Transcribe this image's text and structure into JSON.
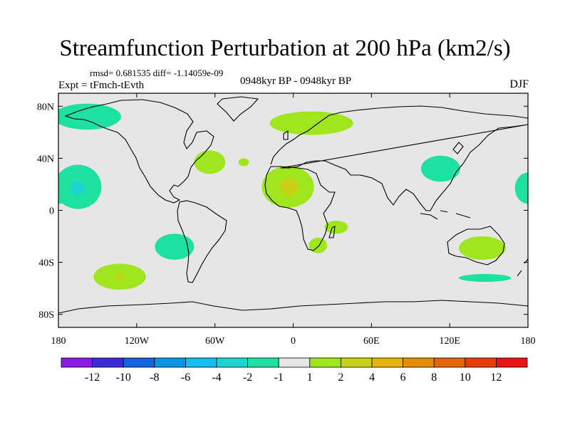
{
  "header": {
    "title": "Streamfunction Perturbation at 200 hPa (km2/s)",
    "rmsd_line": "rmsd= 0.681535 diff= -1.14059e-09",
    "experiment": "Expt = tFmch-tEvth",
    "period": "0948kyr BP - 0948kyr BP",
    "season": "DJF"
  },
  "chart_data": {
    "type": "heatmap",
    "title": "Streamfunction Perturbation at 200 hPa (km2/s)",
    "xlabel": "",
    "ylabel": "",
    "xlim": [
      -180,
      180
    ],
    "ylim": [
      -90,
      90
    ],
    "x_ticks": [
      {
        "lon": -180,
        "label": "180"
      },
      {
        "lon": -120,
        "label": "120W"
      },
      {
        "lon": -60,
        "label": "60W"
      },
      {
        "lon": 0,
        "label": "0"
      },
      {
        "lon": 60,
        "label": "60E"
      },
      {
        "lon": 120,
        "label": "120E"
      },
      {
        "lon": 180,
        "label": "180"
      }
    ],
    "y_ticks": [
      {
        "lat": 80,
        "label": "80N"
      },
      {
        "lat": 40,
        "label": "40N"
      },
      {
        "lat": 0,
        "label": "0"
      },
      {
        "lat": -40,
        "label": "40S"
      },
      {
        "lat": -80,
        "label": "80S"
      }
    ],
    "colorbar": {
      "colors": [
        "#8a1ae6",
        "#3c2cd6",
        "#1464e0",
        "#0a96e6",
        "#14bef0",
        "#1ed2d2",
        "#1ee0a0",
        "#e6e6e6",
        "#a0e61e",
        "#c8d214",
        "#e6b40a",
        "#e68c0a",
        "#e6640a",
        "#e63c0a",
        "#e61414"
      ],
      "labels": [
        "-12",
        "-10",
        "-8",
        "-6",
        "-4",
        "-2",
        "-1",
        "1",
        "2",
        "4",
        "6",
        "8",
        "10",
        "12"
      ]
    },
    "anomalies": [
      {
        "name": "north-pacific-high",
        "lon": -158,
        "lat": 72,
        "rx": 26,
        "ry": 10,
        "value": -1.5
      },
      {
        "name": "north-atlantic-west-blob",
        "lon": -38,
        "lat": 37,
        "rx": 4,
        "ry": 3,
        "value": 1.5
      },
      {
        "name": "east-us-atlantic",
        "lon": -64,
        "lat": 37,
        "rx": 12,
        "ry": 9,
        "value": 1.5
      },
      {
        "name": "scandinavia-north-atlantic",
        "lon": 14,
        "lat": 67,
        "rx": 32,
        "ry": 9,
        "value": 1.5
      },
      {
        "name": "east-pacific-tropical",
        "lon": -165,
        "lat": 18,
        "rx": 18,
        "ry": 17,
        "value": -1.5
      },
      {
        "name": "east-pacific-core",
        "lon": -166,
        "lat": 17,
        "rx": 6,
        "ry": 5,
        "value": -3
      },
      {
        "name": "north-africa",
        "lon": -4,
        "lat": 18,
        "rx": 20,
        "ry": 16,
        "value": 1.5
      },
      {
        "name": "north-africa-core",
        "lon": -3,
        "lat": 18,
        "rx": 7,
        "ry": 7,
        "value": 3
      },
      {
        "name": "east-africa-indian-ocean",
        "lon": 33,
        "lat": -13,
        "rx": 9,
        "ry": 5,
        "value": 1.5
      },
      {
        "name": "south-africa",
        "lon": 19,
        "lat": -27,
        "rx": 7,
        "ry": 6,
        "value": 1.5
      },
      {
        "name": "northwest-pacific",
        "lon": 113,
        "lat": 32,
        "rx": 15,
        "ry": 10,
        "value": -1.5
      },
      {
        "name": "central-pacific-date-line",
        "lon": 180,
        "lat": 17,
        "rx": 10,
        "ry": 12,
        "value": -1.5
      },
      {
        "name": "south-pacific-southwest",
        "lon": -91,
        "lat": -28,
        "rx": 15,
        "ry": 10,
        "value": -1.5
      },
      {
        "name": "south-pacific-southeast",
        "lon": -133,
        "lat": -51,
        "rx": 20,
        "ry": 10,
        "value": 1.5
      },
      {
        "name": "south-pacific-southeast-core",
        "lon": -133,
        "lat": -51,
        "rx": 4,
        "ry": 2,
        "value": 3
      },
      {
        "name": "australia-south",
        "lon": 145,
        "lat": -29,
        "rx": 18,
        "ry": 9,
        "value": 1.5
      },
      {
        "name": "southern-ocean-south-of-australia",
        "lon": 147,
        "lat": -52,
        "rx": 20,
        "ry": 3,
        "value": -1.5
      }
    ]
  }
}
